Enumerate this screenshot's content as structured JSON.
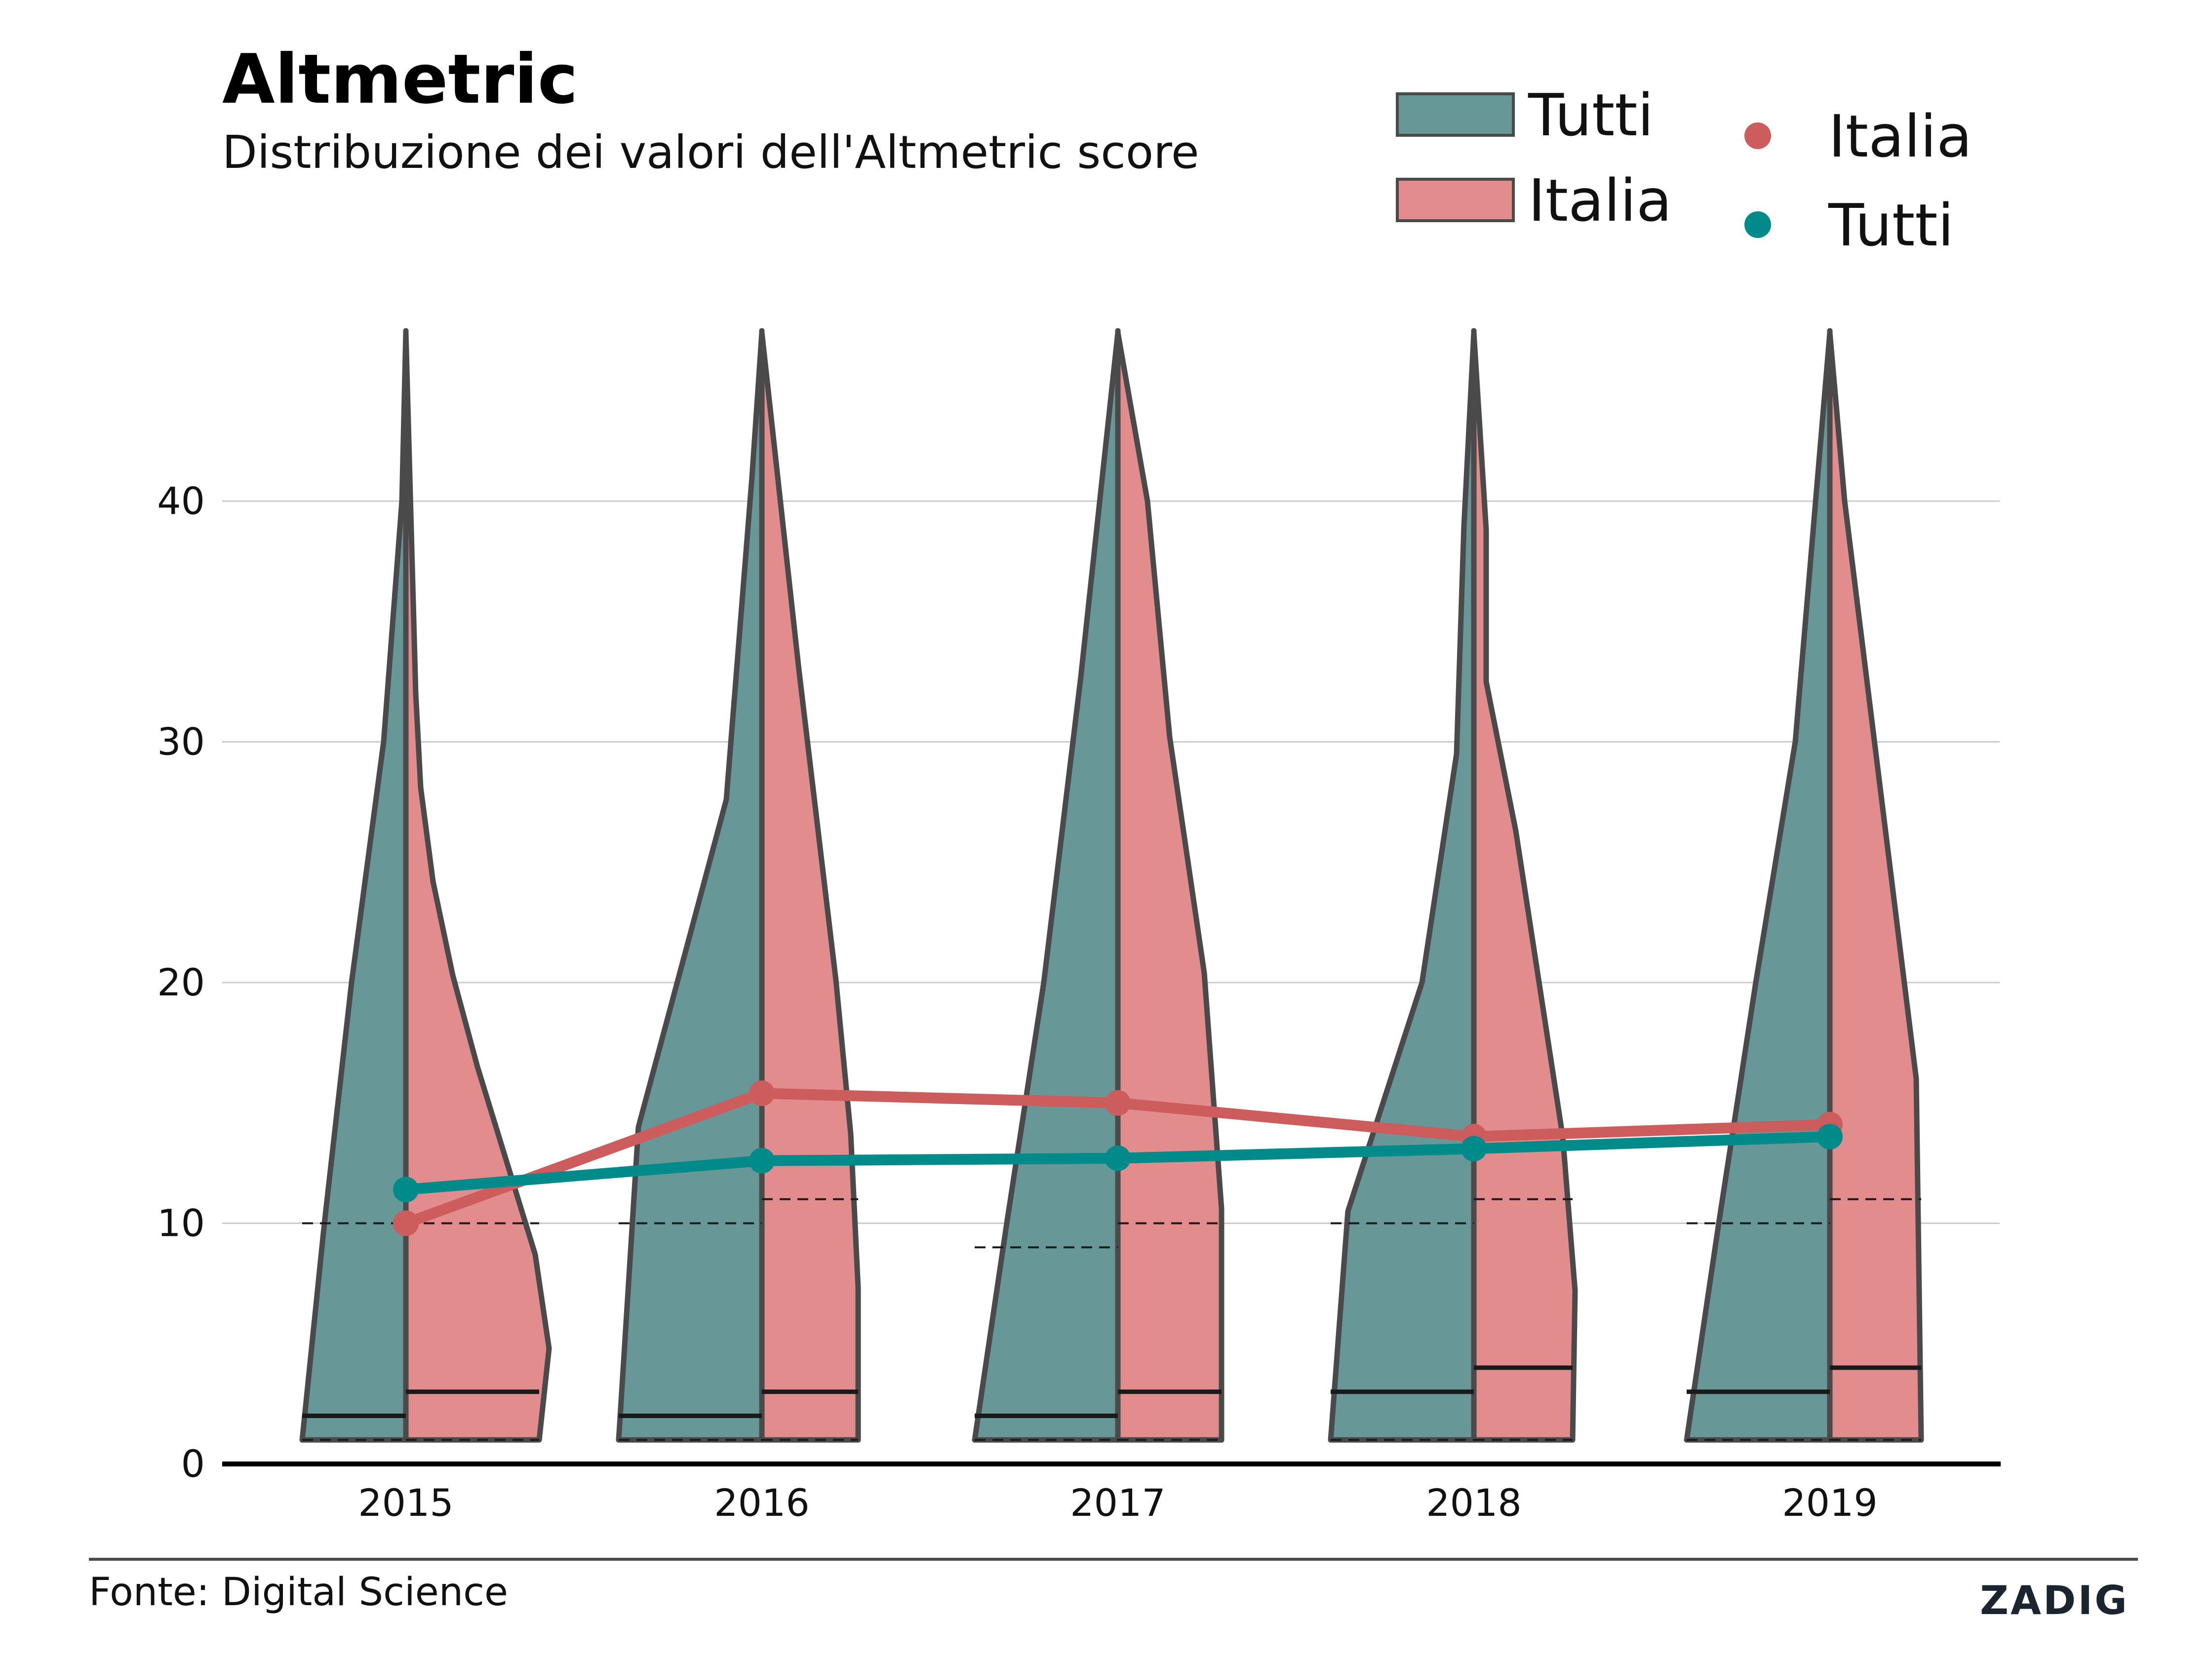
{
  "title": "Altmetric",
  "subtitle": "Distribuzione dei valori dell'Altmetric score",
  "source": "Fonte: Digital Science",
  "logo_text": "ZADIG",
  "colors": {
    "tutti_violin": "#679797",
    "italia_violin": "#e38c8d",
    "italia_point": "#cd5c5c",
    "tutti_point": "#008b8b",
    "outline": "#4a4a4a",
    "grid": "#cccccc"
  },
  "legend": {
    "items": [
      {
        "label": "Tutti",
        "kind": "violin",
        "color": "#679797"
      },
      {
        "label": "Italia",
        "kind": "violin",
        "color": "#e38c8d"
      },
      {
        "label": "Italia",
        "kind": "point",
        "color": "#cd5c5c"
      },
      {
        "label": "Tutti",
        "kind": "point",
        "color": "#008b8b"
      }
    ]
  },
  "chart_data": {
    "type": "violin",
    "categories": [
      "2015",
      "2016",
      "2017",
      "2018",
      "2019"
    ],
    "ylim": [
      0,
      47
    ],
    "yticks": [
      "0",
      "10",
      "20",
      "30",
      "40"
    ],
    "grid": true,
    "legend_position": "top-right",
    "violins": {
      "Tutti": {
        "side": "left",
        "quartiles": [
          {
            "q1": 1,
            "median": 2,
            "q3": 10
          },
          {
            "q1": 1,
            "median": 2,
            "q3": 10
          },
          {
            "q1": 1,
            "median": 2,
            "q3": 9
          },
          {
            "q1": 1,
            "median": 3,
            "q3": 10
          },
          {
            "q1": 1,
            "median": 3,
            "q3": 10
          }
        ]
      },
      "Italia": {
        "side": "right",
        "quartiles": [
          {
            "q1": 1,
            "median": 3,
            "q3": 10
          },
          {
            "q1": 1,
            "median": 3,
            "q3": 11
          },
          {
            "q1": 1,
            "median": 3,
            "q3": 10
          },
          {
            "q1": 1,
            "median": 4,
            "q3": 11
          },
          {
            "q1": 1,
            "median": 4,
            "q3": 11
          }
        ]
      }
    },
    "series": [
      {
        "name": "Italia",
        "type": "line-points",
        "values": [
          10.0,
          15.4,
          15.0,
          13.6,
          14.1
        ]
      },
      {
        "name": "Tutti",
        "type": "line-points",
        "values": [
          11.4,
          12.6,
          12.7,
          13.1,
          13.6
        ]
      }
    ]
  }
}
